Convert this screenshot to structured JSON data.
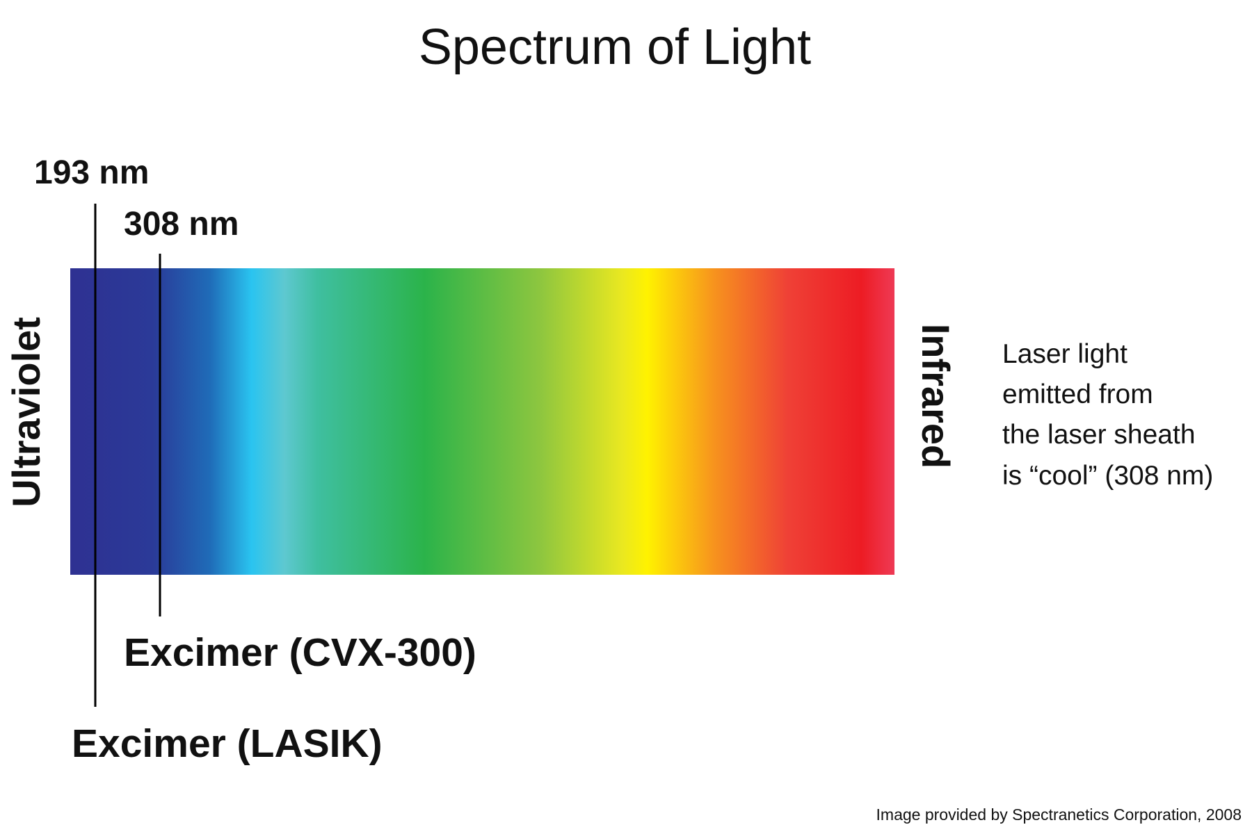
{
  "title": "Spectrum of Light",
  "spectrum": {
    "left_label": "Ultraviolet",
    "right_label": "Infrared"
  },
  "markers": [
    {
      "wavelength": "193 nm",
      "laser": "Excimer (LASIK)"
    },
    {
      "wavelength": "308 nm",
      "laser": "Excimer (CVX-300)"
    }
  ],
  "note": {
    "lines": [
      "Laser light",
      "emitted from",
      "the laser sheath",
      "is “cool” (308 nm)"
    ]
  },
  "credit": "Image provided by Spectranetics Corporation, 2008"
}
